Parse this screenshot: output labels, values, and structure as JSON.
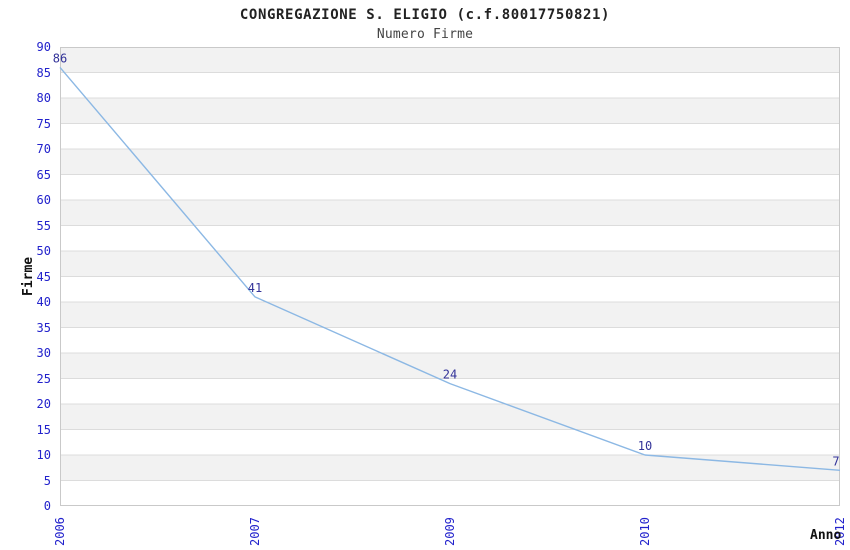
{
  "chart_data": {
    "type": "line",
    "title": "CONGREGAZIONE S. ELIGIO (c.f.80017750821)",
    "subtitle": "Numero Firme",
    "xlabel": "Anno",
    "ylabel": "Firme",
    "categories": [
      "2006",
      "2007",
      "2009",
      "2010",
      "2012"
    ],
    "series": [
      {
        "name": "Numero Firme",
        "values": [
          86,
          41,
          24,
          10,
          7
        ]
      }
    ],
    "point_labels": [
      "86",
      "41",
      "24",
      "10",
      "7"
    ],
    "ylim": [
      0,
      90
    ],
    "ytick_step": 5,
    "yticks": [
      0,
      5,
      10,
      15,
      20,
      25,
      30,
      35,
      40,
      45,
      50,
      55,
      60,
      65,
      70,
      75,
      80,
      85,
      90
    ],
    "grid": "horizontal-bands",
    "legend": "none",
    "colors": {
      "title": "#222222",
      "subtitle": "#444444",
      "axis_title": "#111111",
      "tick_label": "#2222cc",
      "point_label": "#333399",
      "line": "#8cb8e4",
      "band": "#f2f2f2",
      "gridline": "#dcdcdc",
      "plot_border": "#c9c9c9",
      "background": "#ffffff"
    }
  }
}
